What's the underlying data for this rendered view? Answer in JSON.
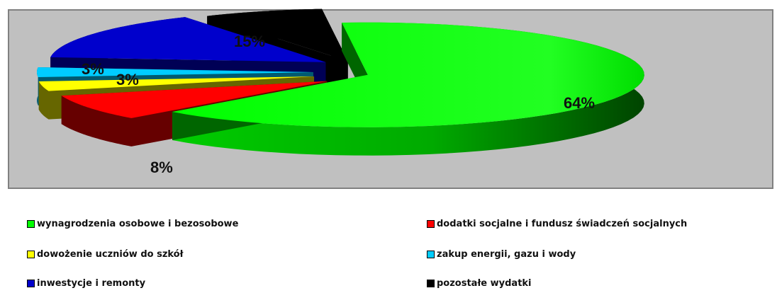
{
  "chart_data": {
    "type": "pie",
    "style": "3d-exploded",
    "title": "",
    "plot_area_background": "#c0c0c0",
    "slices": [
      {
        "label": "wynagrodzenia osobowe i bezosobowe",
        "value": 64,
        "data_label": "64%",
        "color": "#00ff00",
        "dark": "#006600"
      },
      {
        "label": "dodatki socjalne i fundusz świadczeń socjalnych",
        "value": 8,
        "data_label": "8%",
        "color": "#ff0000",
        "dark": "#660000"
      },
      {
        "label": "dowożenie uczniów do szkół",
        "value": 3,
        "data_label": "3%",
        "color": "#ffff00",
        "dark": "#666600"
      },
      {
        "label": "zakup energii, gazu i wody",
        "value": 3,
        "data_label": "3%",
        "color": "#00ccff",
        "dark": "#005a70"
      },
      {
        "label": "inwestycje i remonty",
        "value": 15,
        "data_label": "15%",
        "color": "#0000cc",
        "dark": "#000055"
      },
      {
        "label": "pozostałe wydatki",
        "value": 7,
        "data_label": "",
        "color": "#000000",
        "dark": "#000000"
      }
    ],
    "legend_placement": "bottom"
  }
}
